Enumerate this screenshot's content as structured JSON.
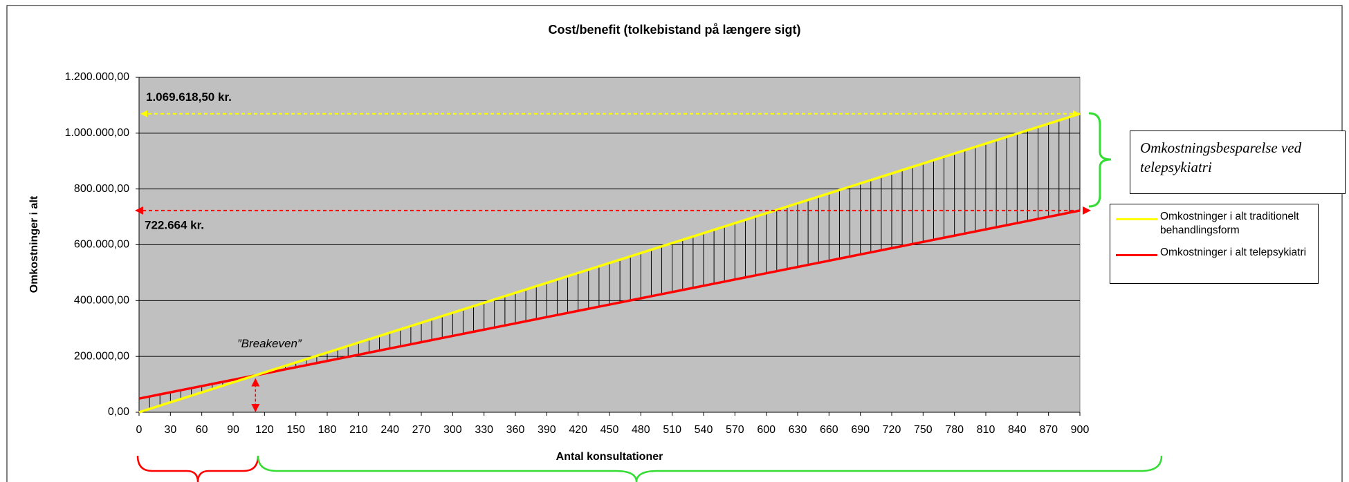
{
  "chart_data": {
    "type": "line",
    "title": "Cost/benefit (tolkebistand på længere sigt)",
    "xlabel": "Antal konsultationer",
    "ylabel": "Omkostninger i alt",
    "x": [
      0,
      10,
      20,
      30,
      40,
      50,
      60,
      70,
      80,
      90,
      100,
      110,
      120,
      130,
      140,
      150,
      160,
      170,
      180,
      190,
      200,
      210,
      220,
      230,
      240,
      250,
      260,
      270,
      280,
      290,
      300,
      310,
      320,
      330,
      340,
      350,
      360,
      370,
      380,
      390,
      400,
      410,
      420,
      430,
      440,
      450,
      460,
      470,
      480,
      490,
      500,
      510,
      520,
      530,
      540,
      550,
      560,
      570,
      580,
      590,
      600,
      610,
      620,
      630,
      640,
      650,
      660,
      670,
      680,
      690,
      700,
      710,
      720,
      730,
      740,
      750,
      760,
      770,
      780,
      790,
      800,
      810,
      820,
      830,
      840,
      850,
      860,
      870,
      880,
      890,
      900
    ],
    "series": [
      {
        "name": "Omkostninger i alt traditionelt behandlingsform",
        "color": "#ffff00",
        "values": [
          0,
          11885,
          23769,
          35654,
          47539,
          59423,
          71308,
          83193,
          95077,
          106962,
          118847,
          130731,
          142616,
          154500,
          166385,
          178270,
          190154,
          202039,
          213924,
          225808,
          237693,
          249578,
          261462,
          273347,
          285232,
          297116,
          309001,
          320886,
          332770,
          344655,
          356540,
          368424,
          380309,
          392193,
          404078,
          415963,
          427847,
          439732,
          451617,
          463501,
          475386,
          487271,
          499155,
          511040,
          522925,
          534809,
          546694,
          558579,
          570463,
          582348,
          594233,
          606117,
          618002,
          629886,
          641771,
          653656,
          665540,
          677425,
          689310,
          701194,
          713079,
          724964,
          736848,
          748733,
          760618,
          772502,
          784387,
          796272,
          808156,
          820041,
          831926,
          843810,
          855695,
          867579,
          879464,
          891349,
          903233,
          915118,
          927003,
          938887,
          950772,
          962657,
          974541,
          986426,
          998311,
          1010195,
          1022080,
          1033965,
          1045849,
          1057734,
          1069618.5
        ]
      },
      {
        "name": "Omkostninger i alt telepsykiatri",
        "color": "#ff0000",
        "values": [
          49000,
          56485,
          63970,
          71455,
          78941,
          86426,
          93911,
          101396,
          108881,
          116366,
          123852,
          131337,
          138822,
          146307,
          153792,
          161277,
          168762,
          176248,
          183733,
          191218,
          198703,
          206188,
          213673,
          221159,
          228644,
          236129,
          243614,
          251099,
          258584,
          266070,
          273555,
          281040,
          288525,
          296010,
          303495,
          310980,
          318466,
          325951,
          333436,
          340921,
          348406,
          355891,
          363377,
          370862,
          378347,
          385832,
          393317,
          400802,
          408287,
          415773,
          423258,
          430743,
          438228,
          445713,
          453198,
          460684,
          468169,
          475654,
          483139,
          490624,
          498109,
          505595,
          513080,
          520565,
          528050,
          535535,
          543020,
          550505,
          557991,
          565476,
          572961,
          580446,
          587931,
          595416,
          602902,
          610387,
          617872,
          625357,
          632842,
          640327,
          647812,
          655298,
          662783,
          670268,
          677753,
          685238,
          692723,
          700209,
          707694,
          715179,
          722664
        ]
      }
    ],
    "xlim": [
      0,
      900
    ],
    "xticks": [
      0,
      30,
      60,
      90,
      120,
      150,
      180,
      210,
      240,
      270,
      300,
      330,
      360,
      390,
      420,
      450,
      480,
      510,
      540,
      570,
      600,
      630,
      660,
      690,
      720,
      750,
      780,
      810,
      840,
      870,
      900
    ],
    "ylim": [
      0,
      1200000
    ],
    "yticks": [
      {
        "value": 0,
        "label": "0,00"
      },
      {
        "value": 200000,
        "label": "200.000,00"
      },
      {
        "value": 400000,
        "label": "400.000,00"
      },
      {
        "value": 600000,
        "label": "600.000,00"
      },
      {
        "value": 800000,
        "label": "800.000,00"
      },
      {
        "value": 1000000,
        "label": "1.000.000,00"
      },
      {
        "value": 1200000,
        "label": "1.200.000,00"
      }
    ],
    "grid": true,
    "plot_background": "#c0c0c0",
    "annotations": [
      "1.069.618,50 kr.",
      "722.664 kr.",
      "”Breakeven”",
      "Omkostningsbesparelse ved telepsykiatri"
    ]
  }
}
